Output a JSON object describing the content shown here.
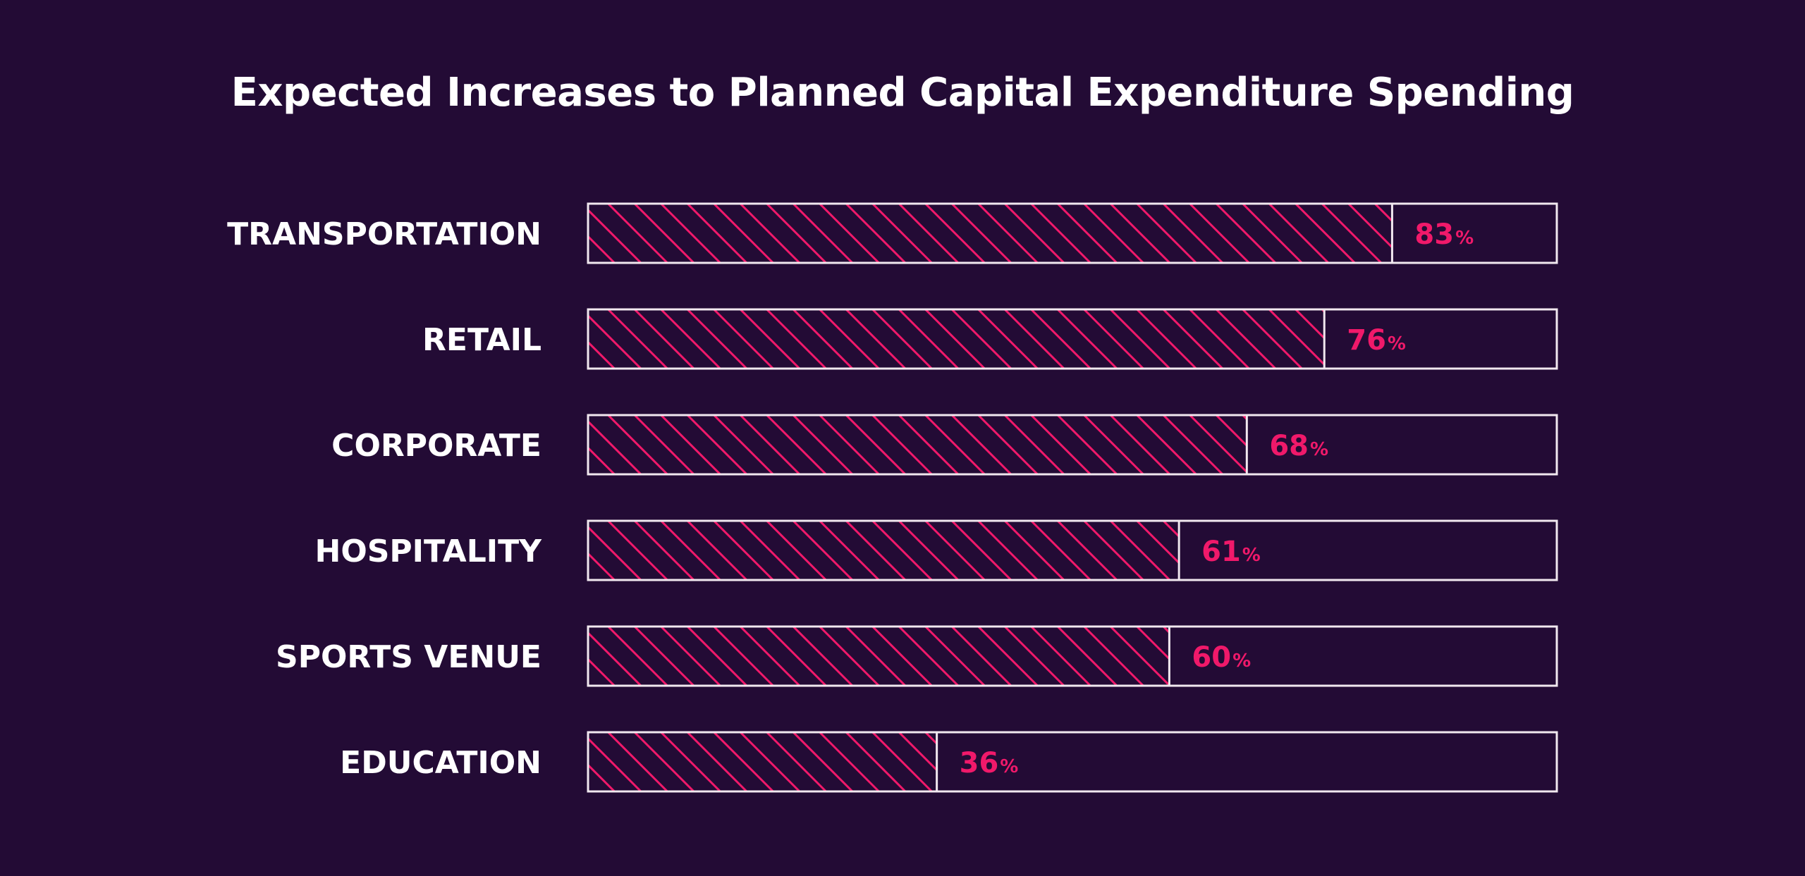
{
  "colors": {
    "background": "#230b35",
    "text": "#ffffff",
    "accent": "#f0196a",
    "outline": "#f1e8ef"
  },
  "chart_data": {
    "type": "bar",
    "orientation": "horizontal",
    "title": "Expected Increases to Planned Capital Expenditure Spending",
    "categories": [
      "TRANSPORTATION",
      "RETAIL",
      "CORPORATE",
      "HOSPITALITY",
      "SPORTS VENUE",
      "EDUCATION"
    ],
    "values": [
      83,
      76,
      68,
      61,
      60,
      36
    ],
    "unit": "%",
    "xlim": [
      0,
      100
    ],
    "grid": false,
    "legend": "none",
    "bar_fill": "diagonal-hatch"
  }
}
